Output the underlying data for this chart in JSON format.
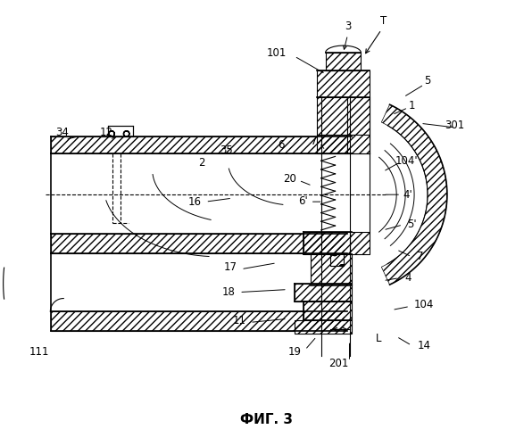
{
  "title": "ФИГ. 3",
  "bg_color": "#ffffff",
  "line_color": "#000000"
}
